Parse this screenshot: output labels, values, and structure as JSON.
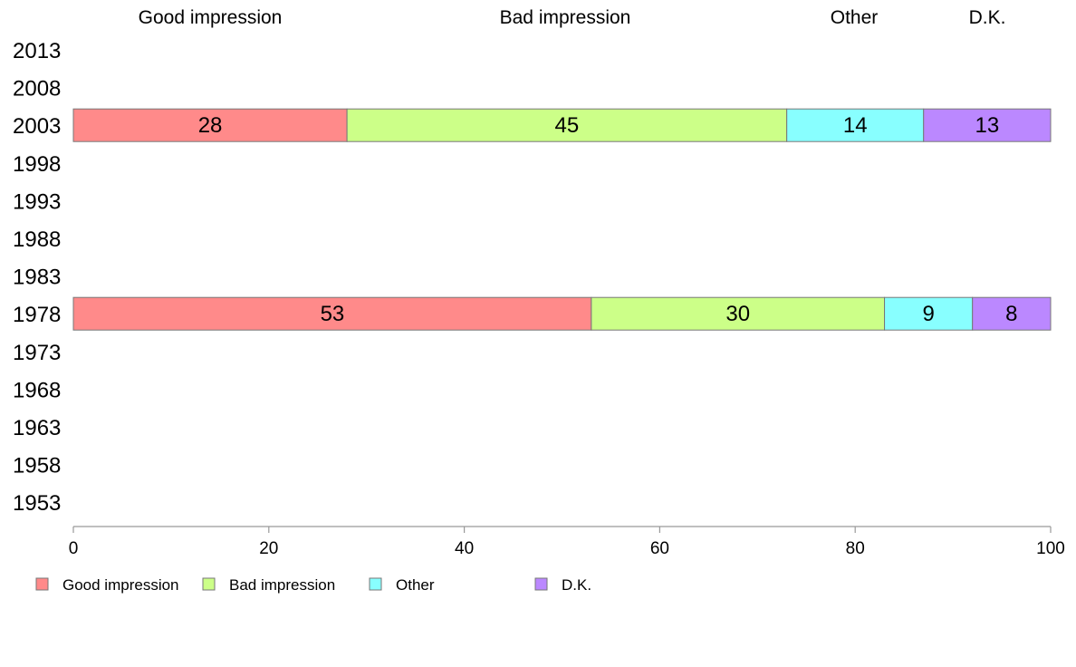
{
  "chart_data": {
    "type": "bar",
    "orientation": "horizontal",
    "stacked": true,
    "categories": [
      "2013",
      "2008",
      "2003",
      "1998",
      "1993",
      "1988",
      "1983",
      "1978",
      "1973",
      "1968",
      "1963",
      "1958",
      "1953"
    ],
    "series": [
      {
        "name": "Good impression",
        "color": "#ff8a8a",
        "values": [
          null,
          null,
          28,
          null,
          null,
          null,
          null,
          53,
          null,
          null,
          null,
          null,
          null
        ]
      },
      {
        "name": "Bad impression",
        "color": "#ccff88",
        "values": [
          null,
          null,
          45,
          null,
          null,
          null,
          null,
          30,
          null,
          null,
          null,
          null,
          null
        ]
      },
      {
        "name": "Other",
        "color": "#88ffff",
        "values": [
          null,
          null,
          14,
          null,
          null,
          null,
          null,
          9,
          null,
          null,
          null,
          null,
          null
        ]
      },
      {
        "name": "D.K.",
        "color": "#bb88ff",
        "values": [
          null,
          null,
          13,
          null,
          null,
          null,
          null,
          8,
          null,
          null,
          null,
          null,
          null
        ]
      }
    ],
    "column_headers": [
      "Good impression",
      "Bad impression",
      "Other",
      "D.K."
    ],
    "xlim": [
      0,
      100
    ],
    "xticks": [
      0,
      20,
      40,
      60,
      80,
      100
    ],
    "grid": false,
    "legend": "bottom-left",
    "title": "",
    "xlabel": "",
    "ylabel": ""
  }
}
